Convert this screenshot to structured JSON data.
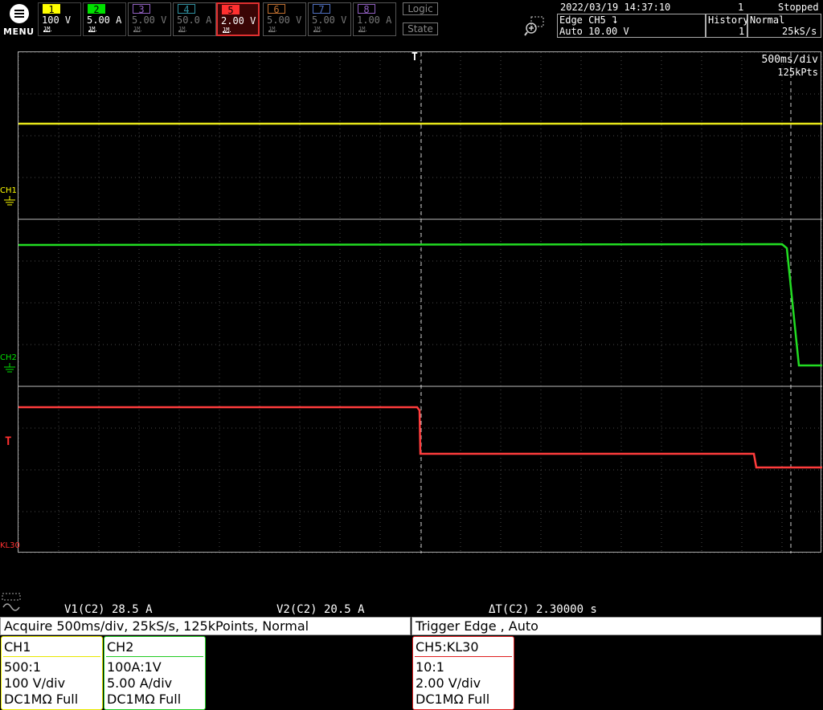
{
  "toolbar": {
    "menu_label": "MENU",
    "channels": [
      {
        "num": "1",
        "scale": "100 V",
        "coupling": "1M",
        "active": true,
        "color": "#ffff00"
      },
      {
        "num": "2",
        "scale": "5.00 A",
        "coupling": "1M",
        "active": true,
        "color": "#00e000"
      },
      {
        "num": "3",
        "scale": "5.00 V",
        "coupling": "1M",
        "active": false,
        "color": "#9060c0"
      },
      {
        "num": "4",
        "scale": "50.0 A",
        "coupling": "1M",
        "active": false,
        "color": "#3090a0"
      },
      {
        "num": "5",
        "scale": "2.00 V",
        "coupling": "1M",
        "active": true,
        "color": "#ff3030"
      },
      {
        "num": "6",
        "scale": "5.00 V",
        "coupling": "1M",
        "active": false,
        "color": "#c07030"
      },
      {
        "num": "7",
        "scale": "5.00 V",
        "coupling": "1M",
        "active": false,
        "color": "#5070c0"
      },
      {
        "num": "8",
        "scale": "1.00 A",
        "coupling": "1M",
        "active": false,
        "color": "#9060c0"
      }
    ],
    "logic_label": "Logic",
    "state_label": "State",
    "datetime": "2022/03/19 14:37:10",
    "acq_count": "1",
    "status": "Stopped",
    "trigger_line1": "Edge CH5 ⮧",
    "trigger_line2": "Auto 10.00 V",
    "history_label": "History",
    "history_value": "1",
    "mode_label": "Normal",
    "sample_rate": "25kS/s"
  },
  "grid": {
    "timebase": "500ms/div",
    "points": "125kPts",
    "trigger_marker": "T",
    "trigger_level_marker": "T",
    "channel_markers": [
      {
        "label": "CH1",
        "color": "#ffff00"
      },
      {
        "label": "CH2",
        "color": "#00e000"
      },
      {
        "label": "KL30",
        "color": "#ff3030"
      }
    ]
  },
  "traces": {
    "ch1_color": "#e6e61a",
    "ch2_color": "#22dd22",
    "ch5_color": "#ff3c3c"
  },
  "cursors": {
    "v1": "V1(C2)  28.5 A",
    "v2": "V2(C2)  20.5 A",
    "dt": "ΔT(C2)  2.30000 s"
  },
  "info": {
    "acquire_label": "Acquire",
    "acquire_text": "500ms/div, 25kS/s, 125kPoints, Normal",
    "trigger_text": "Trigger Edge , Auto",
    "cards": [
      {
        "title": "CH1",
        "line1": "500:1",
        "line2": "100 V/div",
        "line3": "DC1MΩ Full",
        "color": "#e8e800"
      },
      {
        "title": "CH2",
        "line1": "100A:1V",
        "line2": "5.00 A/div",
        "line3": "DC1MΩ Full",
        "color": "#22cc22"
      },
      {
        "title": "CH5:KL30",
        "line1": "10:1",
        "line2": "2.00 V/div",
        "line3": "DC1MΩ Full",
        "color": "#e02020"
      }
    ]
  }
}
